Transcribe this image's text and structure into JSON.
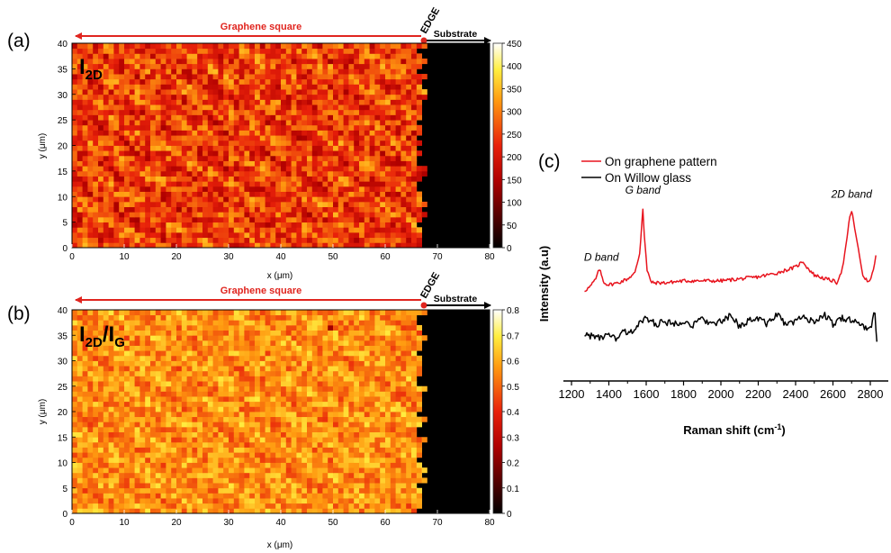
{
  "panels": {
    "a": "(a)",
    "b": "(b)",
    "c": "(c)"
  },
  "annotations": {
    "graphene_square": "Graphene square",
    "edge": "EDGE",
    "substrate": "Substrate"
  },
  "colors": {
    "red_annotation": "#e0251f",
    "map_low": "#000000",
    "map_mid": "#e8200a",
    "map_high": "#ffffff",
    "spectrum_graphene": "#e8141e",
    "spectrum_glass": "#000000"
  },
  "chart_data": [
    {
      "type": "heatmap",
      "panel": "(a)",
      "label_main": "I",
      "label_sub": "2D",
      "label_rest": "",
      "label_rest_sub": "",
      "xlabel": "x (μm)",
      "ylabel": "y (μm)",
      "xlim": [
        0,
        80
      ],
      "ylim": [
        0,
        40
      ],
      "xticks": [
        0,
        10,
        20,
        30,
        40,
        50,
        60,
        70,
        80
      ],
      "yticks": [
        0,
        5,
        10,
        15,
        20,
        25,
        30,
        35,
        40
      ],
      "colorbar_ticks": [
        0,
        50,
        100,
        150,
        200,
        250,
        300,
        350,
        400,
        450
      ],
      "colorbar_range": [
        0,
        450
      ],
      "edge_x": 67,
      "graphene_mean": 245,
      "graphene_variation": 80,
      "substrate_value": 0,
      "defect_point": [
        49,
        36
      ]
    },
    {
      "type": "heatmap",
      "panel": "(b)",
      "label_main": "I",
      "label_sub": "2D",
      "label_rest": "/I",
      "label_rest_sub": "G",
      "xlabel": "x (μm)",
      "ylabel": "y (μm)",
      "xlim": [
        0,
        80
      ],
      "ylim": [
        0,
        40
      ],
      "xticks": [
        0,
        10,
        20,
        30,
        40,
        50,
        60,
        70,
        80
      ],
      "yticks": [
        0,
        5,
        10,
        15,
        20,
        25,
        30,
        35,
        40
      ],
      "colorbar_ticks": [
        0,
        0.1,
        0.2,
        0.3,
        0.4,
        0.5,
        0.6,
        0.7,
        0.8
      ],
      "colorbar_range": [
        0,
        0.8
      ],
      "edge_x": 67,
      "graphene_mean": 0.56,
      "graphene_variation": 0.1,
      "substrate_value": 0,
      "defect_point": [
        49,
        36
      ]
    },
    {
      "type": "line",
      "panel": "(c)",
      "xlabel": "Raman shift (cm",
      "xlabel_sup": "-1",
      "xlabel_end": ")",
      "ylabel": "Intensity (a.u)",
      "xlim": [
        1200,
        2850
      ],
      "xticks": [
        1200,
        1400,
        1600,
        1800,
        2000,
        2200,
        2400,
        2600,
        2800
      ],
      "ylim": [
        0,
        10
      ],
      "legend_position": "top-left",
      "series": [
        {
          "name": "On graphene pattern",
          "color": "#e8141e",
          "x": [
            1270,
            1300,
            1330,
            1350,
            1360,
            1375,
            1400,
            1450,
            1500,
            1540,
            1565,
            1575,
            1582,
            1590,
            1605,
            1630,
            1700,
            1800,
            1900,
            2000,
            2100,
            2200,
            2300,
            2400,
            2440,
            2460,
            2500,
            2560,
            2600,
            2620,
            2650,
            2675,
            2690,
            2700,
            2710,
            2730,
            2760,
            2790,
            2810,
            2830
          ],
          "y": [
            4.6,
            4.8,
            5.2,
            5.7,
            5.4,
            5.0,
            4.9,
            5.0,
            5.2,
            5.5,
            6.5,
            7.8,
            8.8,
            7.4,
            5.6,
            5.0,
            5.0,
            5.1,
            5.1,
            5.1,
            5.2,
            5.3,
            5.5,
            5.8,
            6.1,
            5.8,
            5.4,
            5.2,
            5.1,
            5.0,
            5.7,
            7.2,
            8.4,
            8.6,
            8.2,
            7.0,
            5.4,
            5.0,
            5.4,
            6.4
          ]
        },
        {
          "name": "On Willow glass",
          "color": "#000000",
          "x": [
            1270,
            1300,
            1350,
            1400,
            1450,
            1480,
            1500,
            1550,
            1600,
            1650,
            1700,
            1750,
            1800,
            1850,
            1900,
            1950,
            2000,
            2050,
            2100,
            2150,
            2200,
            2250,
            2300,
            2350,
            2400,
            2450,
            2500,
            2550,
            2600,
            2650,
            2700,
            2750,
            2800,
            2825,
            2835
          ],
          "y": [
            2.4,
            2.3,
            2.2,
            2.3,
            2.1,
            2.6,
            2.3,
            2.8,
            3.2,
            2.9,
            3.0,
            2.9,
            3.1,
            2.8,
            3.2,
            2.9,
            3.0,
            3.3,
            2.8,
            3.1,
            3.2,
            2.9,
            3.4,
            2.8,
            3.1,
            3.2,
            3.0,
            3.4,
            2.9,
            3.2,
            3.1,
            2.8,
            2.7,
            3.5,
            2.0
          ]
        }
      ],
      "annotations": [
        {
          "text": "D band",
          "x": 1360
        },
        {
          "text": "G band",
          "x": 1582
        },
        {
          "text": "2D band",
          "x": 2700
        }
      ]
    }
  ]
}
